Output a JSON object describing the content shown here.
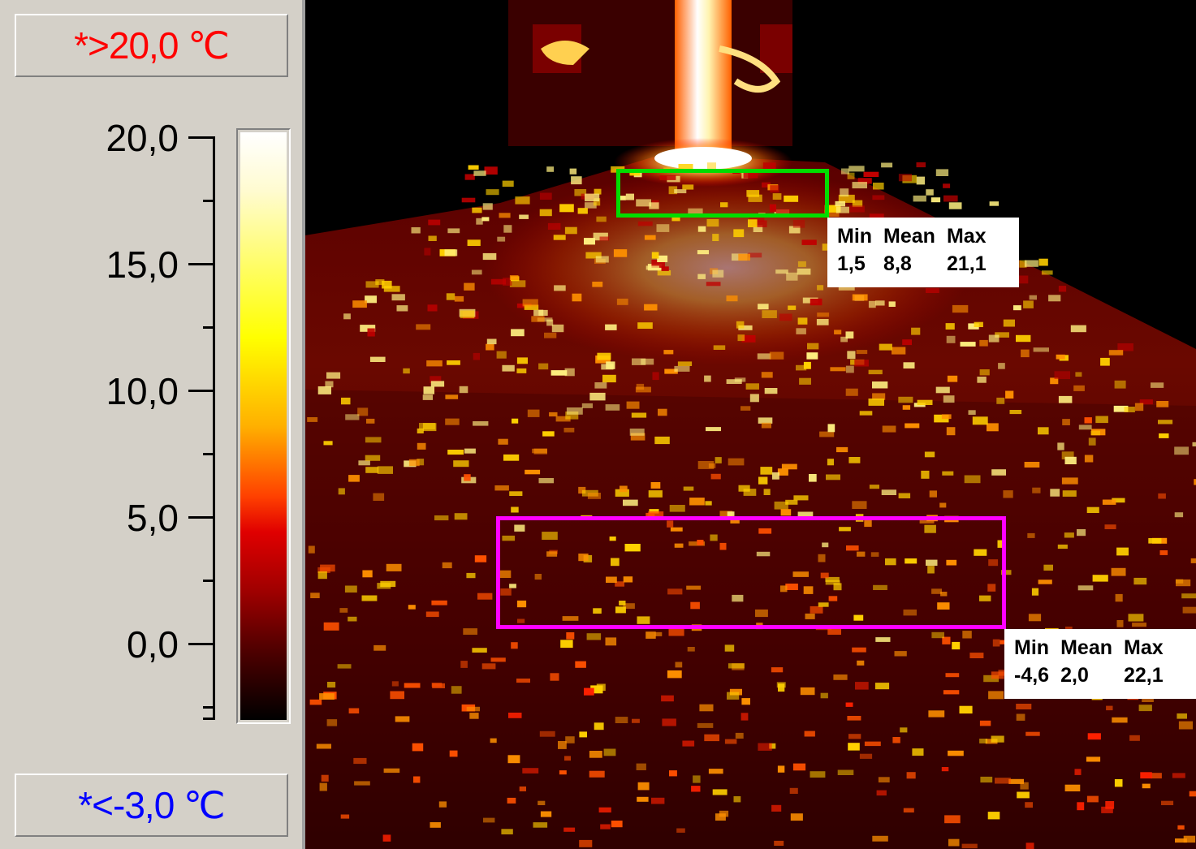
{
  "scale": {
    "max_label": "*>20,0 ℃",
    "min_label": "*<-3,0 ℃",
    "max_color": "#ff0000",
    "min_color": "#0000ff",
    "tick_labels": [
      "20,0",
      "15,0",
      "10,0",
      "5,0",
      "0,0"
    ],
    "colormap": "iron (black-red-orange-yellow-white)"
  },
  "rois": [
    {
      "color": "#00dd00",
      "headers": [
        "Min",
        "Mean",
        "Max"
      ],
      "values": [
        "1,5",
        "8,8",
        "21,1"
      ]
    },
    {
      "color": "#ff00ff",
      "headers": [
        "Min",
        "Mean",
        "Max"
      ],
      "values": [
        "-4,6",
        "2,0",
        "22,1"
      ]
    }
  ]
}
